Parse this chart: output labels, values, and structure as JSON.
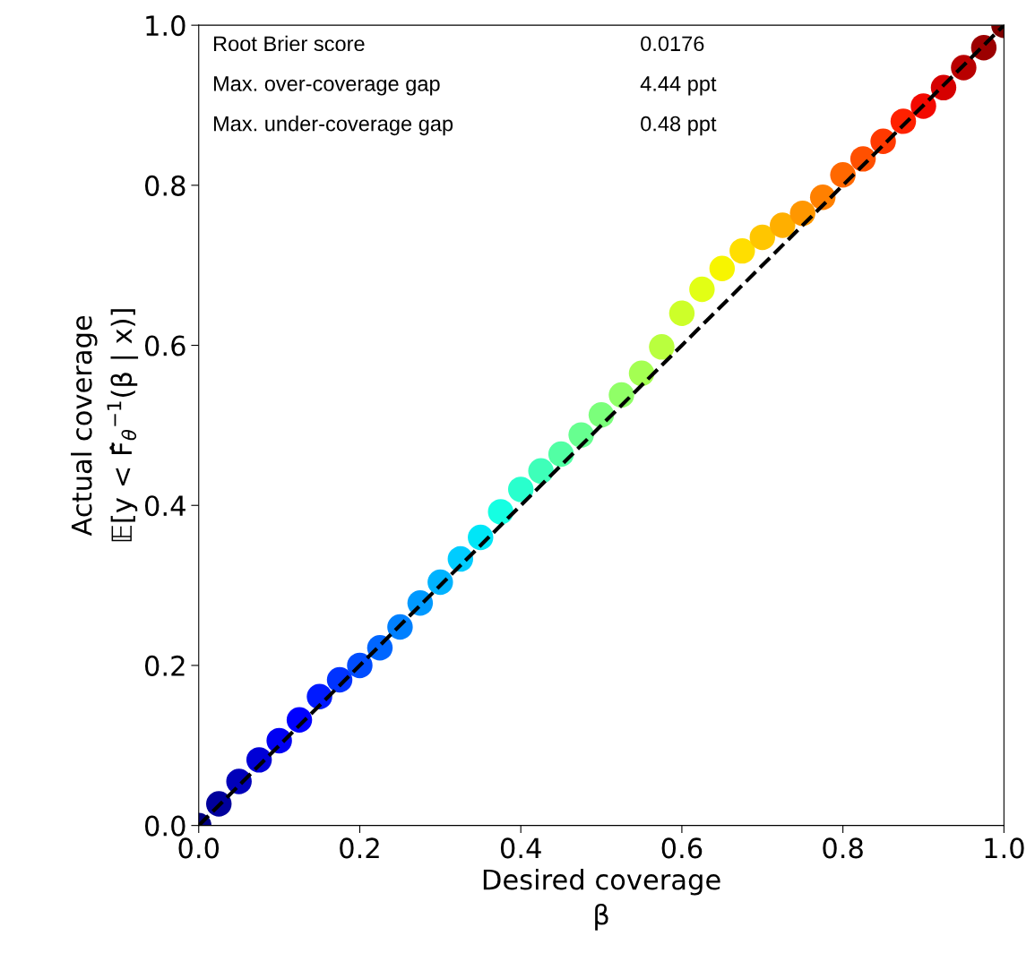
{
  "chart_data": {
    "type": "scatter",
    "xlabel": "Desired coverage\nβ",
    "ylabel": "Actual coverage\n𝔼[y < F̂$_{θ}$$^{−1}$(β | x)]",
    "xlim": [
      0,
      1
    ],
    "ylim": [
      0,
      1
    ],
    "xticks": [
      {
        "value": 0,
        "label": "0.0"
      },
      {
        "value": 0.2,
        "label": "0.2"
      },
      {
        "value": 0.4,
        "label": "0.4"
      },
      {
        "value": 0.6,
        "label": "0.6"
      },
      {
        "value": 0.8,
        "label": "0.8"
      },
      {
        "value": 1,
        "label": "1.0"
      }
    ],
    "yticks": [
      {
        "value": 0,
        "label": "0.0"
      },
      {
        "value": 0.2,
        "label": "0.2"
      },
      {
        "value": 0.4,
        "label": "0.4"
      },
      {
        "value": 0.6,
        "label": "0.6"
      },
      {
        "value": 0.8,
        "label": "0.8"
      },
      {
        "value": 1,
        "label": "1.0"
      }
    ],
    "grid": false,
    "legend": false,
    "annotations": [
      "Root Brier score",
      "0.0176",
      "Max. over-coverage gap",
      "4.44 ppt",
      "Max. under-coverage gap",
      "0.48 ppt"
    ],
    "series": [
      {
        "marker": "circle",
        "x": [
          0,
          0.025,
          0.05,
          0.075,
          0.1,
          0.125,
          0.15,
          0.175,
          0.2,
          0.225,
          0.25,
          0.275,
          0.3,
          0.325,
          0.35,
          0.375,
          0.4,
          0.425,
          0.45,
          0.475,
          0.5,
          0.525,
          0.55,
          0.575,
          0.6,
          0.625,
          0.65,
          0.675,
          0.7,
          0.725,
          0.75,
          0.775,
          0.8,
          0.825,
          0.85,
          0.875,
          0.9,
          0.925,
          0.95,
          0.975,
          1
        ],
        "values": [
          0,
          0.027,
          0.055,
          0.082,
          0.106,
          0.132,
          0.161,
          0.182,
          0.2,
          0.222,
          0.248,
          0.278,
          0.304,
          0.333,
          0.36,
          0.392,
          0.42,
          0.443,
          0.464,
          0.488,
          0.513,
          0.538,
          0.565,
          0.598,
          0.64,
          0.67,
          0.696,
          0.718,
          0.735,
          0.75,
          0.765,
          0.785,
          0.813,
          0.833,
          0.855,
          0.88,
          0.899,
          0.922,
          0.947,
          0.972,
          1
        ],
        "colors": [
          "#000080",
          "#00009c",
          "#0000b9",
          "#0000d6",
          "#0000f3",
          "#0000ff",
          "#001aff",
          "#0033ff",
          "#004dff",
          "#0066ff",
          "#0080ff",
          "#0099ff",
          "#00b3ff",
          "#00ccff",
          "#00e6f7",
          "#15ffe2",
          "#29ffcd",
          "#3effb9",
          "#52ffa4",
          "#67ff90",
          "#7bff7b",
          "#90ff67",
          "#a4ff52",
          "#b9ff3e",
          "#cdff29",
          "#e2ff15",
          "#f7f500",
          "#ffde00",
          "#ffc600",
          "#ffaf00",
          "#ff9700",
          "#ff8000",
          "#ff6800",
          "#ff5000",
          "#ff3900",
          "#ff2100",
          "#f30900",
          "#d60000",
          "#b90000",
          "#9c0000",
          "#800000"
        ]
      },
      {
        "type": "line",
        "x": [
          0,
          1
        ],
        "values": [
          0,
          1
        ],
        "color": "#000000",
        "line_style": "dashed",
        "marker": "none"
      }
    ]
  }
}
